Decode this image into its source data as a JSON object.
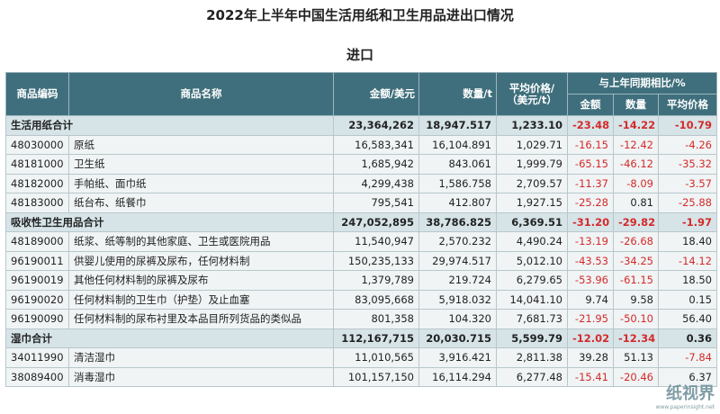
{
  "title": "2022年上半年中国生活用纸和卫生用品进出口情况",
  "subtitle": "进口",
  "table": {
    "header": {
      "code": "商品编码",
      "name": "商品名称",
      "amount": "金额/美元",
      "quantity": "数量/t",
      "price": [
        "平均价格/",
        "（美元/t）"
      ],
      "group": "与上年同期相比/%",
      "group_columns": [
        "金额",
        "数量",
        "平均价格"
      ]
    },
    "rows": [
      {
        "total": "生活用纸合计",
        "cells": [
          "23,364,262",
          "18,947.517",
          "1,233.10",
          "-23.48",
          "-14.22",
          "-10.79"
        ]
      },
      {
        "code": "48030000",
        "name": "原纸",
        "cells": [
          "16,583,341",
          "16,104.891",
          "1,029.71",
          "-16.15",
          "-12.42",
          "-4.26"
        ]
      },
      {
        "code": "48181000",
        "name": "卫生纸",
        "cells": [
          "1,685,942",
          "843.061",
          "1,999.79",
          "-65.15",
          "-46.12",
          "-35.32"
        ]
      },
      {
        "code": "48182000",
        "name": "手帕纸、面巾纸",
        "cells": [
          "4,299,438",
          "1,586.758",
          "2,709.57",
          "-11.37",
          "-8.09",
          "-3.57"
        ]
      },
      {
        "code": "48183000",
        "name": "纸台布、纸餐巾",
        "cells": [
          "795,541",
          "412.807",
          "1,927.15",
          "-25.28",
          "0.81",
          "-25.88"
        ]
      },
      {
        "total": "吸收性卫生用品合计",
        "cells": [
          "247,052,895",
          "38,786.825",
          "6,369.51",
          "-31.20",
          "-29.82",
          "-1.97"
        ]
      },
      {
        "code": "48189000",
        "name": "纸浆、纸等制的其他家庭、卫生或医院用品",
        "cells": [
          "11,540,947",
          "2,570.232",
          "4,490.24",
          "-13.19",
          "-26.68",
          "18.40"
        ]
      },
      {
        "code": "96190011",
        "name": "供婴儿使用的尿裤及尿布，任何材料制",
        "cells": [
          "150,235,133",
          "29,974.517",
          "5,012.10",
          "-43.53",
          "-34.25",
          "-14.12"
        ]
      },
      {
        "code": "96190019",
        "name": "其他任何材料制的尿裤及尿布",
        "cells": [
          "1,379,789",
          "219.724",
          "6,279.65",
          "-53.96",
          "-61.15",
          "18.50"
        ]
      },
      {
        "code": "96190020",
        "name": "任何材料制的卫生巾（护垫）及止血塞",
        "cells": [
          "83,095,668",
          "5,918.032",
          "14,041.10",
          "9.74",
          "9.58",
          "0.15"
        ]
      },
      {
        "code": "96190090",
        "name": "任何材料制的尿布衬里及本品目所列货品的类似品",
        "cells": [
          "801,358",
          "104.320",
          "7,681.73",
          "-21.95",
          "-50.10",
          "56.40"
        ]
      },
      {
        "total": "湿巾合计",
        "cells": [
          "112,167,715",
          "20,030.715",
          "5,599.79",
          "-12.02",
          "-12.34",
          "0.36"
        ]
      },
      {
        "code": "34011990",
        "name": "清洁湿巾",
        "cells": [
          "11,010,565",
          "3,916.421",
          "2,811.38",
          "39.28",
          "51.13",
          "-7.84"
        ]
      },
      {
        "code": "38089400",
        "name": "消毒湿巾",
        "cells": [
          "101,157,150",
          "16,114.294",
          "6,277.48",
          "-15.41",
          "-20.46",
          "6.37"
        ]
      }
    ]
  },
  "watermark": {
    "brand": "纸视界",
    "url": "www.paperinsight.net"
  }
}
